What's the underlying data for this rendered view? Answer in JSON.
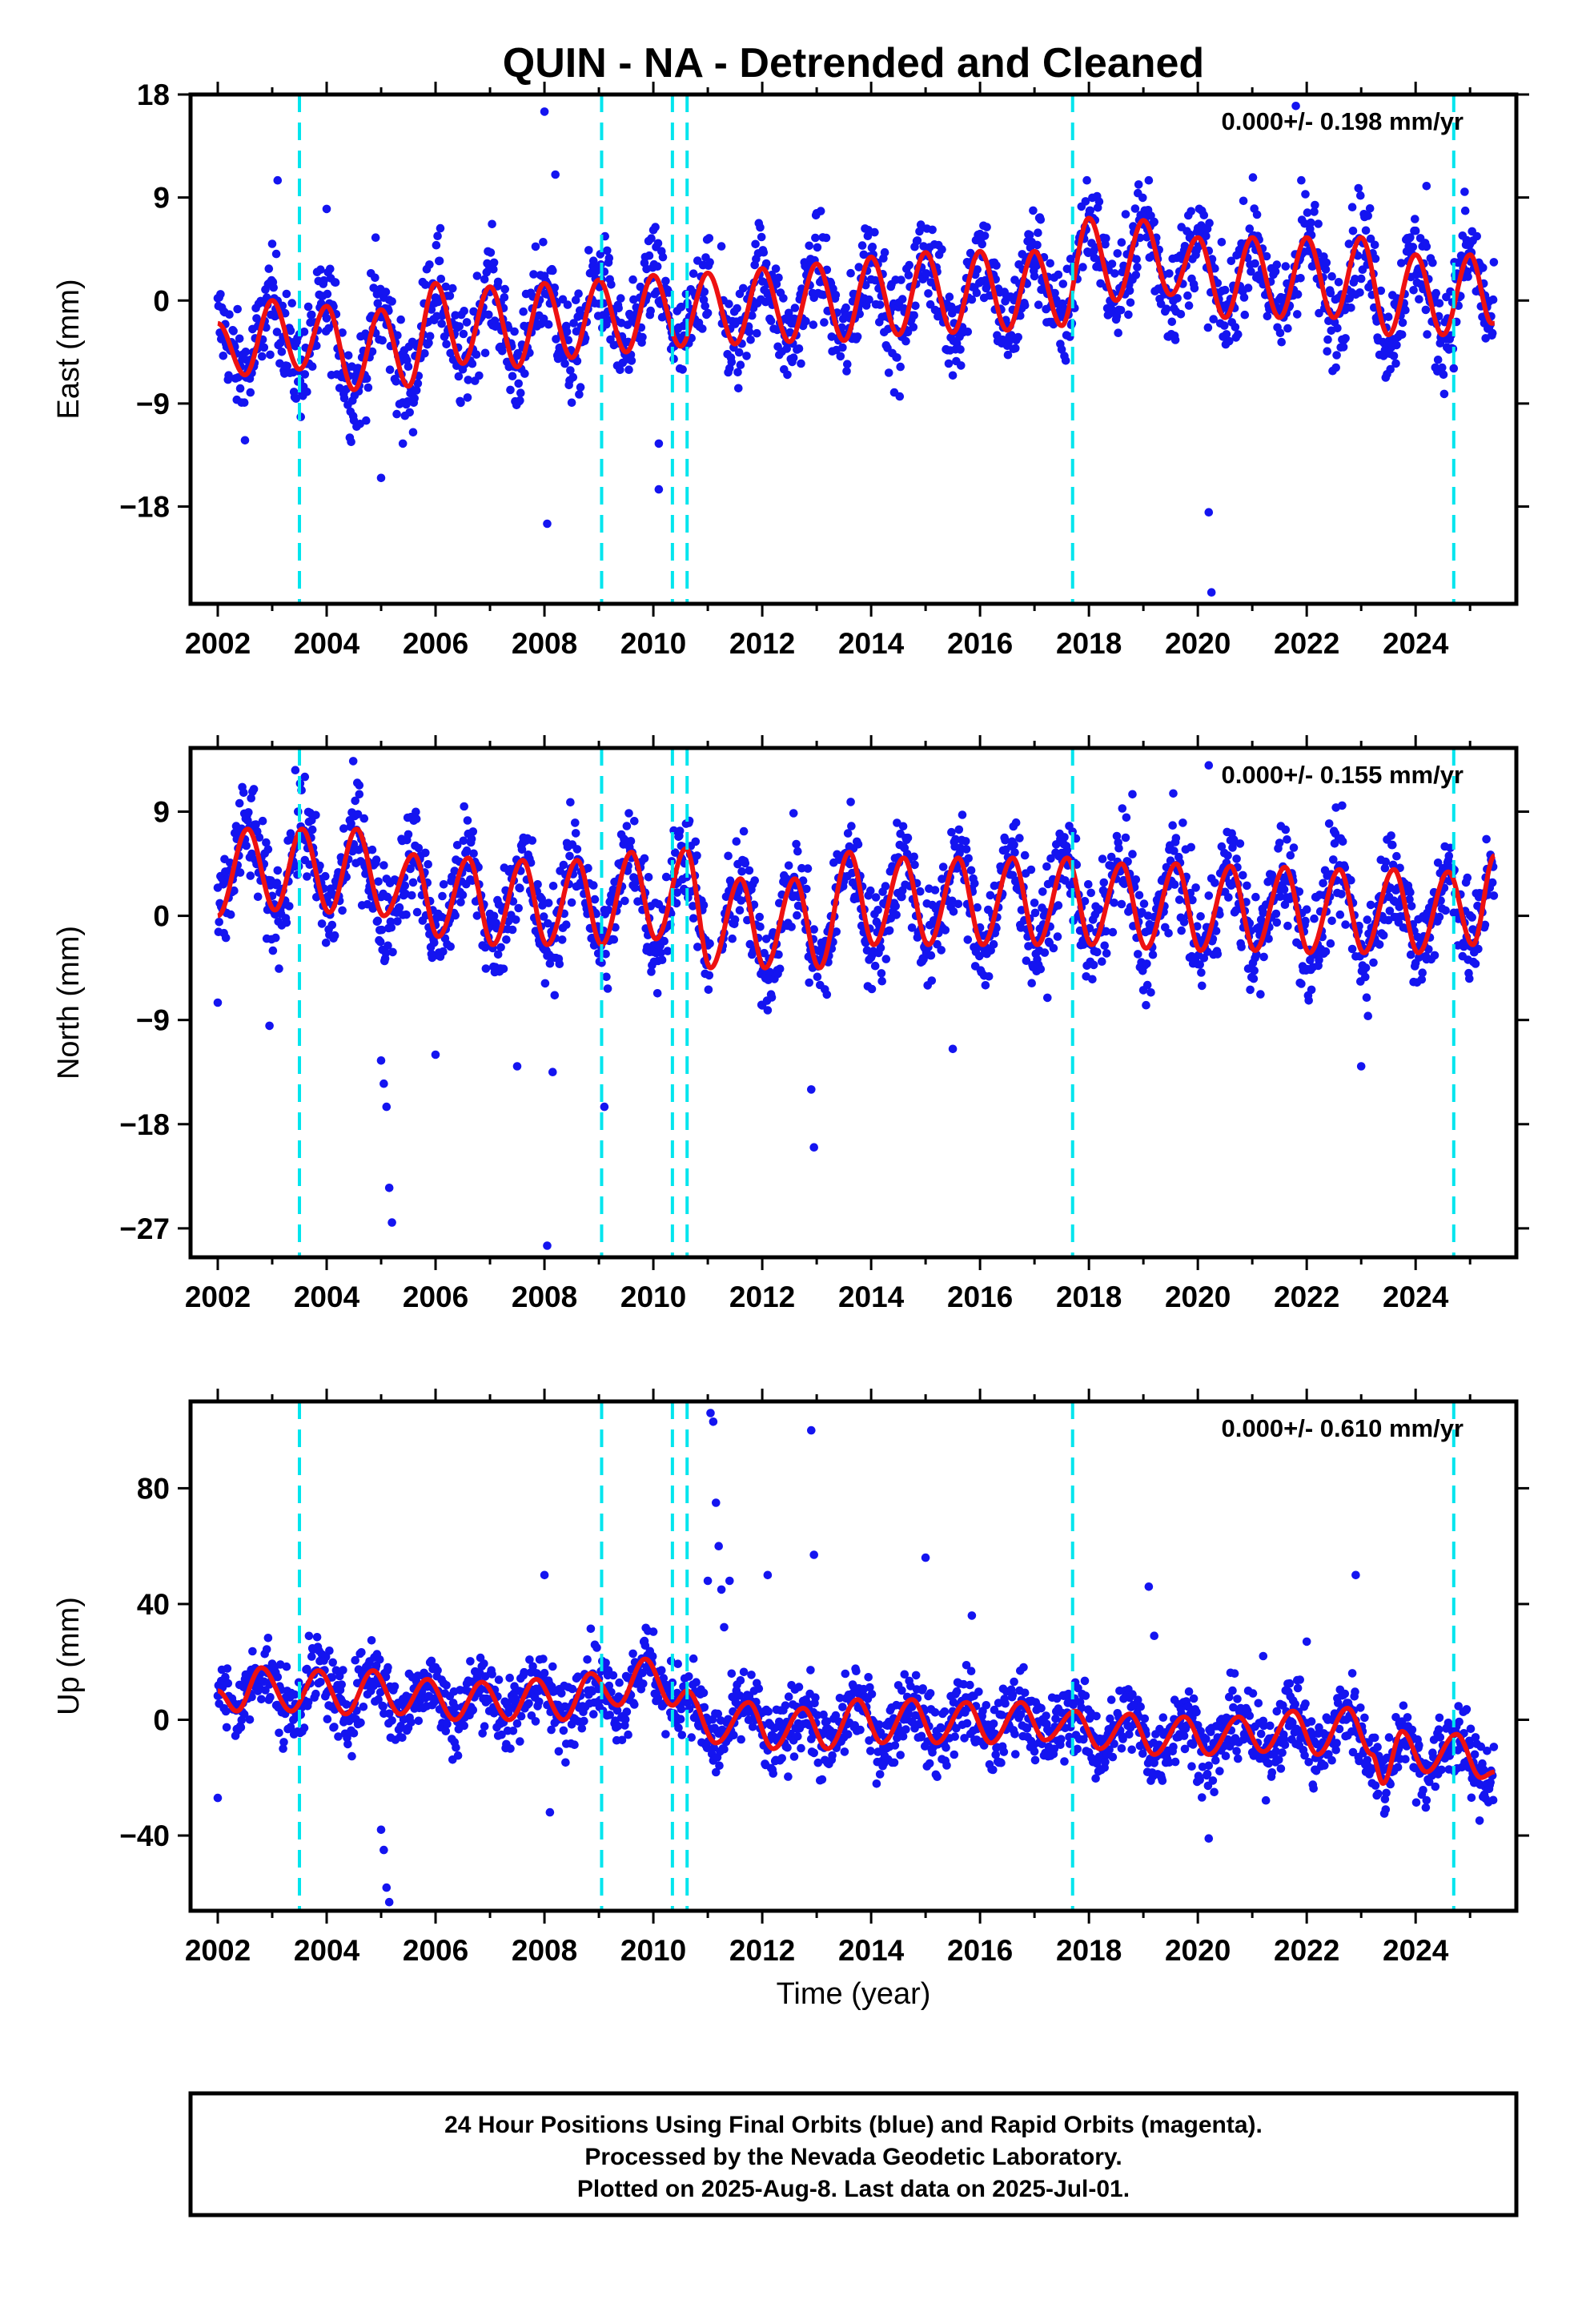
{
  "figure": {
    "title": "QUIN - NA - Detrended and Cleaned",
    "footer_lines": [
      "24 Hour Positions Using Final Orbits (blue) and Rapid Orbits (magenta).",
      "Processed by the Nevada Geodetic Laboratory.",
      "Plotted on 2025-Aug-8. Last data on 2025-Jul-01."
    ],
    "xlabel": "Time (year)",
    "colors": {
      "points": "#1414f0",
      "fit": "#ee1111",
      "events": "#00e5ee"
    }
  },
  "chart_data": [
    {
      "type": "scatter",
      "component": "east",
      "ylabel": "East (mm)",
      "rate_label": "0.000+/- 0.198 mm/yr",
      "xlim": [
        2001.5,
        2025.85
      ],
      "ylim": [
        -26.5,
        18
      ],
      "xticks": [
        2002,
        2004,
        2006,
        2008,
        2010,
        2012,
        2014,
        2016,
        2018,
        2020,
        2022,
        2024
      ],
      "yticks": [
        18,
        9,
        0,
        -9,
        -18
      ],
      "event_lines": [
        2003.5,
        2009.05,
        2010.35,
        2010.62,
        2017.7,
        2024.7
      ],
      "series": [
        {
          "type": "fit_line",
          "x": [
            2002.0,
            2002.5,
            2003.0,
            2003.5,
            2004.0,
            2004.5,
            2005.0,
            2005.5,
            2006.0,
            2006.5,
            2007.0,
            2007.5,
            2008.0,
            2008.5,
            2009.0,
            2009.5,
            2010.0,
            2010.5,
            2011.0,
            2011.5,
            2012.0,
            2012.5,
            2013.0,
            2013.5,
            2014.0,
            2014.5,
            2015.0,
            2015.5,
            2016.0,
            2016.5,
            2017.0,
            2017.5,
            2018.0,
            2018.5,
            2019.0,
            2019.5,
            2020.0,
            2020.5,
            2021.0,
            2021.5,
            2022.0,
            2022.5,
            2023.0,
            2023.5,
            2024.0,
            2024.5,
            2025.0,
            2025.4
          ],
          "y": [
            -2.0,
            -6.5,
            0.0,
            -6.0,
            -0.5,
            -7.8,
            -0.8,
            -7.5,
            1.5,
            -5.5,
            1.2,
            -5.8,
            1.5,
            -5.0,
            1.8,
            -4.5,
            2.2,
            -4.0,
            2.4,
            -3.8,
            2.8,
            -3.6,
            3.2,
            -3.5,
            3.8,
            -3.0,
            4.2,
            -2.8,
            4.3,
            -2.6,
            4.3,
            -2.2,
            7.2,
            0.0,
            7.0,
            0.5,
            5.5,
            -1.5,
            5.5,
            -1.5,
            5.5,
            -1.5,
            5.5,
            -3.0,
            4.0,
            -3.0,
            4.0,
            -2.0
          ]
        },
        {
          "type": "outliers",
          "x": [
            2003.1,
            2004.0,
            2004.9,
            2005.0,
            2005.4,
            2008.0,
            2008.05,
            2008.2,
            2010.1,
            2010.1,
            2019.1,
            2020.2,
            2020.25,
            2021.8,
            2021.9,
            2024.2,
            2024.9
          ],
          "y": [
            10.5,
            8.0,
            5.5,
            -15.5,
            -12.5,
            16.5,
            -19.5,
            11.0,
            -12.5,
            -16.5,
            10.5,
            -18.5,
            -25.5,
            17.0,
            10.5,
            10.0,
            9.5
          ]
        }
      ]
    },
    {
      "type": "scatter",
      "component": "north",
      "ylabel": "North (mm)",
      "rate_label": "0.000+/- 0.155 mm/yr",
      "xlim": [
        2001.5,
        2025.85
      ],
      "ylim": [
        -29.5,
        14.5
      ],
      "xticks": [
        2002,
        2004,
        2006,
        2008,
        2010,
        2012,
        2014,
        2016,
        2018,
        2020,
        2022,
        2024
      ],
      "yticks": [
        9,
        0,
        -9,
        -18,
        -27
      ],
      "event_lines": [
        2003.5,
        2009.05,
        2010.35,
        2010.62,
        2017.7,
        2024.7
      ],
      "series": [
        {
          "type": "fit_line",
          "x": [
            2002.0,
            2002.55,
            2003.05,
            2003.55,
            2004.05,
            2004.55,
            2005.05,
            2005.6,
            2006.05,
            2006.6,
            2007.05,
            2007.6,
            2008.05,
            2008.6,
            2009.05,
            2009.6,
            2010.05,
            2010.6,
            2011.05,
            2011.6,
            2012.05,
            2012.6,
            2013.05,
            2013.6,
            2014.05,
            2014.6,
            2015.05,
            2015.6,
            2016.05,
            2016.6,
            2017.05,
            2017.6,
            2018.05,
            2018.6,
            2019.05,
            2019.6,
            2020.05,
            2020.6,
            2021.05,
            2021.6,
            2022.05,
            2022.6,
            2023.05,
            2023.6,
            2024.05,
            2024.6,
            2025.05,
            2025.45
          ],
          "y": [
            0.0,
            7.5,
            0.5,
            7.5,
            0.3,
            7.5,
            0.0,
            5.3,
            -1.8,
            5.0,
            -2.5,
            4.8,
            -2.5,
            4.8,
            -2.5,
            5.5,
            -2.0,
            5.8,
            -4.5,
            3.2,
            -4.5,
            3.2,
            -4.5,
            5.5,
            -2.5,
            5.0,
            -2.5,
            5.0,
            -2.5,
            5.0,
            -2.5,
            5.0,
            -2.5,
            4.5,
            -2.8,
            4.5,
            -3.0,
            4.3,
            -3.0,
            4.2,
            -3.2,
            4.0,
            -3.2,
            4.0,
            -3.2,
            3.8,
            -2.5,
            5.2
          ]
        },
        {
          "type": "outliers",
          "x": [
            2002.0,
            2002.95,
            2003.6,
            2004.6,
            2005.0,
            2005.05,
            2005.1,
            2005.15,
            2005.2,
            2006.0,
            2007.5,
            2008.05,
            2008.15,
            2009.1,
            2012.9,
            2012.95,
            2015.5,
            2018.8,
            2020.2,
            2023.0
          ],
          "y": [
            -7.5,
            -9.5,
            12.0,
            10.5,
            -12.5,
            -14.5,
            -16.5,
            -23.5,
            -26.5,
            -12.0,
            -13.0,
            -28.5,
            -13.5,
            -16.5,
            -15.0,
            -20.0,
            -11.5,
            10.5,
            13.0,
            -13.0
          ]
        }
      ]
    },
    {
      "type": "scatter",
      "component": "up",
      "ylabel": "Up (mm)",
      "rate_label": "0.000+/- 0.610 mm/yr",
      "xlim": [
        2001.5,
        2025.85
      ],
      "ylim": [
        -66,
        110
      ],
      "xticks": [
        2002,
        2004,
        2006,
        2008,
        2010,
        2012,
        2014,
        2016,
        2018,
        2020,
        2022,
        2024
      ],
      "yticks": [
        80,
        40,
        0,
        -40
      ],
      "event_lines": [
        2003.5,
        2009.05,
        2010.35,
        2010.62,
        2017.7,
        2024.7
      ],
      "series": [
        {
          "type": "fit_line",
          "x": [
            2002.0,
            2002.35,
            2002.8,
            2003.35,
            2003.85,
            2004.35,
            2004.85,
            2005.35,
            2005.85,
            2006.35,
            2006.85,
            2007.35,
            2007.85,
            2008.35,
            2008.85,
            2009.35,
            2009.85,
            2010.35,
            2010.62,
            2011.15,
            2011.75,
            2012.2,
            2012.75,
            2013.2,
            2013.75,
            2014.2,
            2014.75,
            2015.2,
            2015.75,
            2016.2,
            2016.75,
            2017.2,
            2017.75,
            2018.2,
            2018.75,
            2019.2,
            2019.75,
            2020.2,
            2020.75,
            2021.2,
            2021.75,
            2022.2,
            2022.75,
            2023.2,
            2023.4,
            2023.75,
            2024.2,
            2024.75,
            2025.2,
            2025.45
          ],
          "y": [
            10,
            3,
            18,
            3,
            17,
            2,
            17,
            2,
            14,
            0,
            13,
            0,
            14,
            0,
            16,
            5,
            21,
            5,
            10,
            -8,
            6,
            -10,
            4,
            -10,
            7,
            -8,
            7,
            -8,
            6,
            -8,
            6,
            -7,
            3,
            -10,
            2,
            -12,
            1,
            -12,
            1,
            -11,
            3,
            -12,
            4,
            -12,
            -22,
            -4,
            -18,
            -5,
            -20,
            -18
          ]
        },
        {
          "type": "outliers",
          "x": [
            2002.0,
            2003.2,
            2005.0,
            2005.05,
            2005.1,
            2005.15,
            2008.0,
            2008.1,
            2011.0,
            2011.05,
            2011.1,
            2011.15,
            2011.2,
            2011.25,
            2011.3,
            2011.4,
            2012.1,
            2012.9,
            2012.95,
            2015.0,
            2015.85,
            2019.1,
            2019.2,
            2020.2,
            2020.3,
            2021.2,
            2022.0,
            2022.9
          ],
          "y": [
            -27,
            -10,
            -38,
            -45,
            -58,
            -63,
            50,
            -32,
            48,
            106,
            103,
            75,
            60,
            45,
            32,
            48,
            50,
            100,
            57,
            56,
            36,
            46,
            29,
            -41,
            -25,
            22,
            27,
            50
          ]
        }
      ]
    }
  ]
}
